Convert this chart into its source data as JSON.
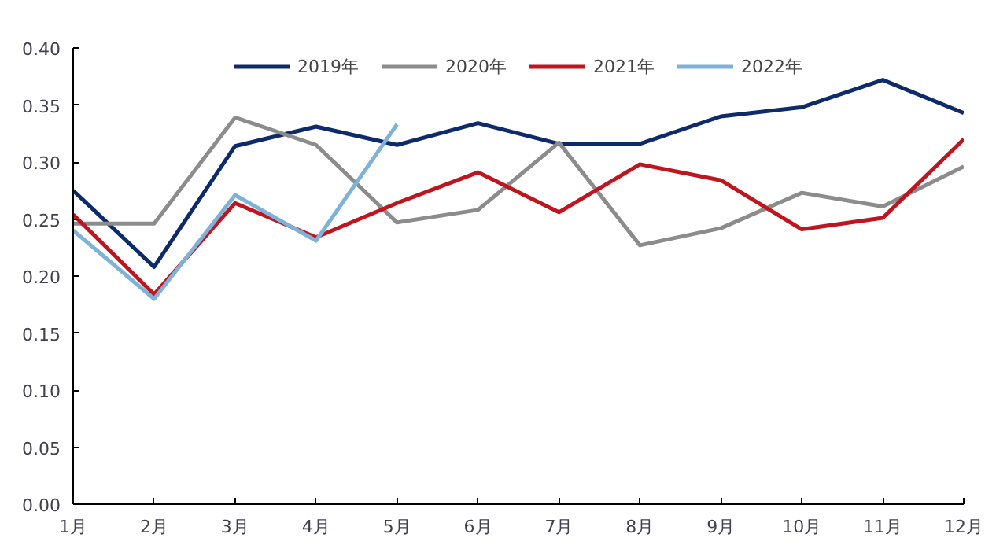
{
  "chart_data": {
    "type": "line",
    "categories": [
      "1月",
      "2月",
      "3月",
      "4月",
      "5月",
      "6月",
      "7月",
      "8月",
      "9月",
      "10月",
      "11月",
      "12月"
    ],
    "series": [
      {
        "name": "2019年",
        "color": "#0d2a6b",
        "values": [
          0.275,
          0.208,
          0.314,
          0.331,
          0.315,
          0.334,
          0.316,
          0.316,
          0.34,
          0.348,
          0.372,
          0.343
        ]
      },
      {
        "name": "2020年",
        "color": "#8c8c8c",
        "values": [
          0.246,
          0.246,
          0.339,
          0.315,
          0.247,
          0.258,
          0.317,
          0.227,
          0.242,
          0.273,
          0.261,
          0.296
        ]
      },
      {
        "name": "2021年",
        "color": "#c0141e",
        "values": [
          0.254,
          0.184,
          0.264,
          0.234,
          0.264,
          0.291,
          0.256,
          0.298,
          0.284,
          0.241,
          0.251,
          0.32
        ]
      },
      {
        "name": "2022年",
        "color": "#7fb2d8",
        "values": [
          0.24,
          0.18,
          0.271,
          0.231,
          0.333,
          null,
          null,
          null,
          null,
          null,
          null,
          null
        ]
      }
    ],
    "ylim": [
      0,
      0.4
    ],
    "yticks": [
      {
        "value": 0,
        "label": "0.00"
      },
      0.05,
      {
        "value": 0.1,
        "label": "0.10"
      },
      0.15,
      {
        "value": 0.2,
        "label": "0.20"
      },
      0.25,
      {
        "value": 0.3,
        "label": "0.30"
      },
      0.35,
      {
        "value": 0.4,
        "label": "0.40"
      }
    ],
    "grid": false,
    "legend": "top",
    "marker": "none",
    "line_style": "solid"
  }
}
